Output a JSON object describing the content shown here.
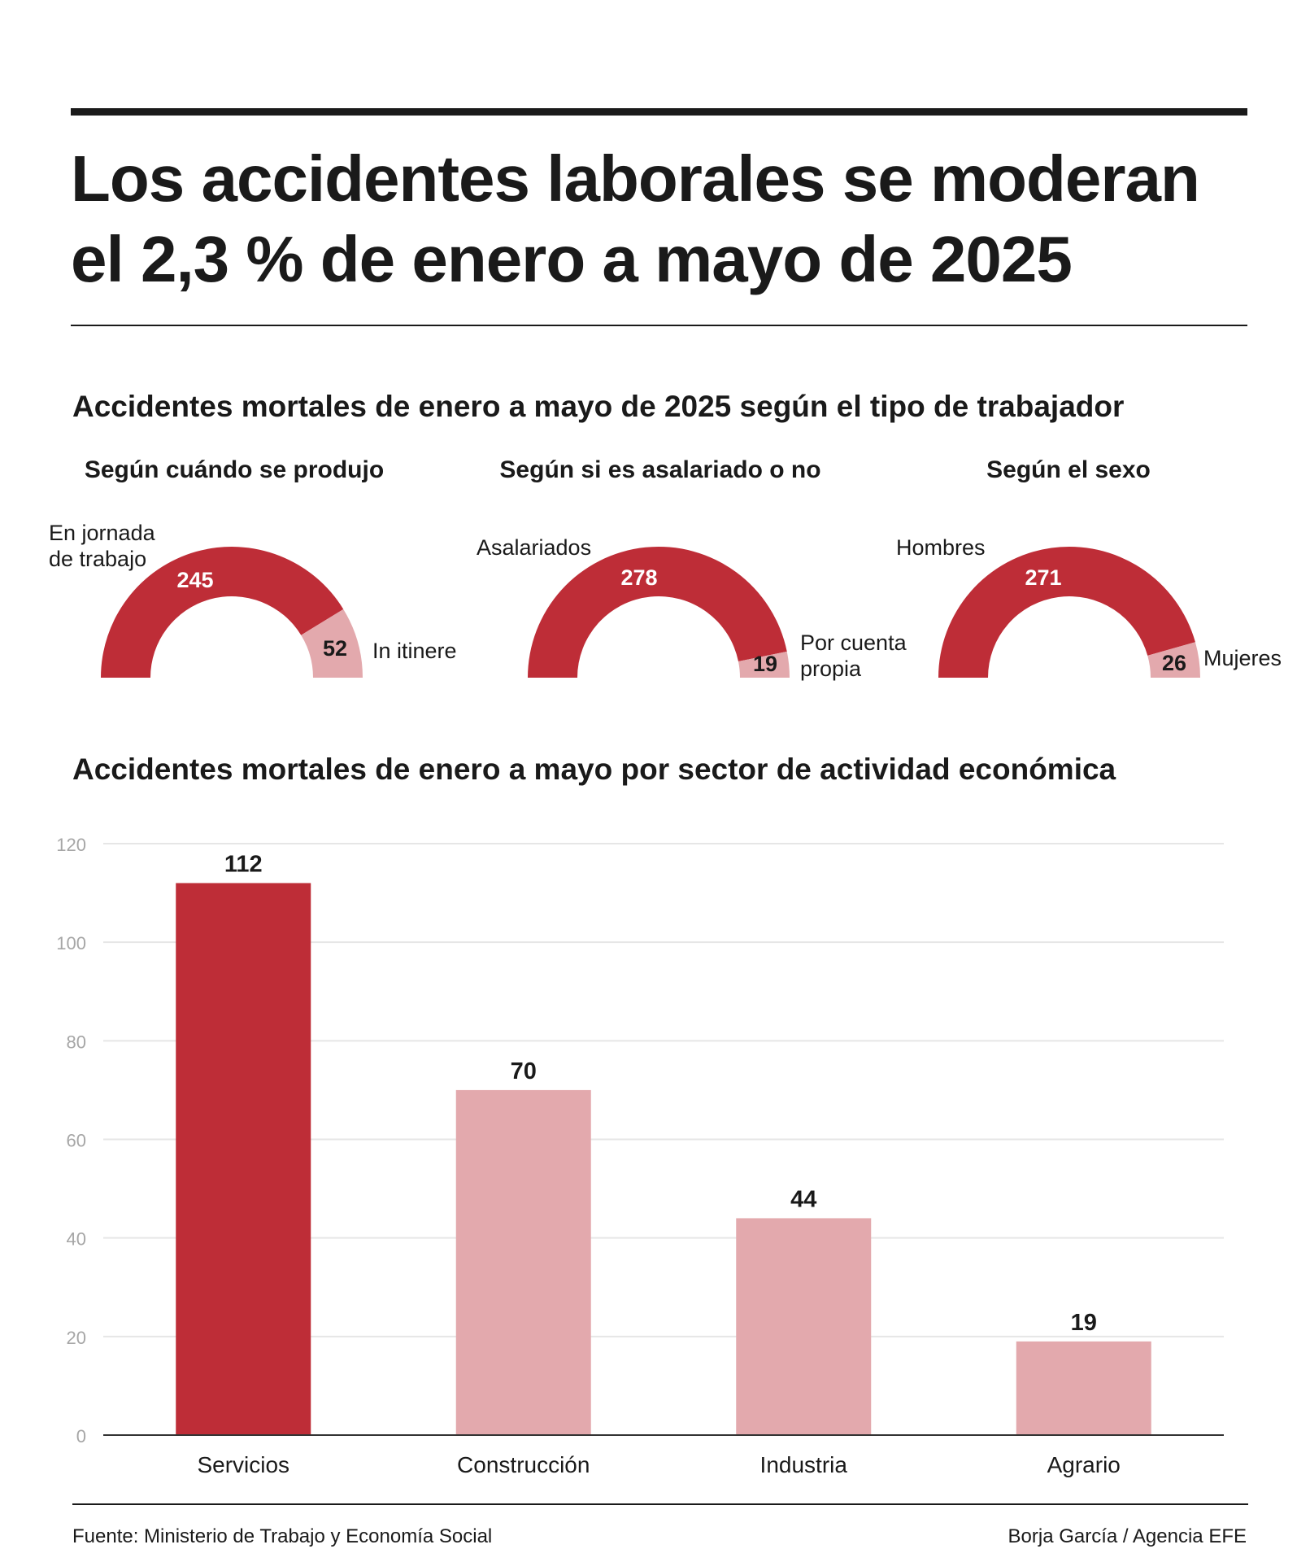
{
  "header": {
    "title_line1": "Los accidentes laborales se moderan",
    "title_line2": "el 2,3 % de enero a mayo de 2025"
  },
  "section1": {
    "title": "Accidentes mortales de enero a mayo de 2025 según el tipo de trabajador"
  },
  "section2": {
    "title": "Accidentes mortales de enero a mayo por sector de actividad económica"
  },
  "colors": {
    "primary": "#be2d37",
    "secondary": "#e3a9ad",
    "grid": "#e6e6e6",
    "tick": "#a6a6a6",
    "text": "#1a1a1a"
  },
  "chart_data": [
    {
      "type": "pie",
      "variant": "semicircle-donut",
      "title": "Según cuándo se produjo",
      "slices": [
        {
          "label_lines": [
            "En jornada",
            "de trabajo"
          ],
          "value": 245
        },
        {
          "label_lines": [
            "In itinere"
          ],
          "value": 52
        }
      ]
    },
    {
      "type": "pie",
      "variant": "semicircle-donut",
      "title": "Según si es asalariado o no",
      "slices": [
        {
          "label_lines": [
            "Asalariados"
          ],
          "value": 278
        },
        {
          "label_lines": [
            "Por cuenta",
            "propia"
          ],
          "value": 19
        }
      ]
    },
    {
      "type": "pie",
      "variant": "semicircle-donut",
      "title": "Según el sexo",
      "slices": [
        {
          "label_lines": [
            "Hombres"
          ],
          "value": 271
        },
        {
          "label_lines": [
            "Mujeres"
          ],
          "value": 26
        }
      ]
    },
    {
      "type": "bar",
      "categories": [
        "Servicios",
        "Construcción",
        "Industria",
        "Agrario"
      ],
      "values": [
        112,
        70,
        44,
        19
      ],
      "highlight": [
        true,
        false,
        false,
        false
      ],
      "ylim": [
        0,
        120
      ],
      "yticks": [
        0,
        20,
        40,
        60,
        80,
        100,
        120
      ],
      "grid": true,
      "data_labels": true
    }
  ],
  "footer": {
    "source": "Fuente: Ministerio de Trabajo y Economía Social",
    "credit": "Borja García / Agencia EFE"
  }
}
